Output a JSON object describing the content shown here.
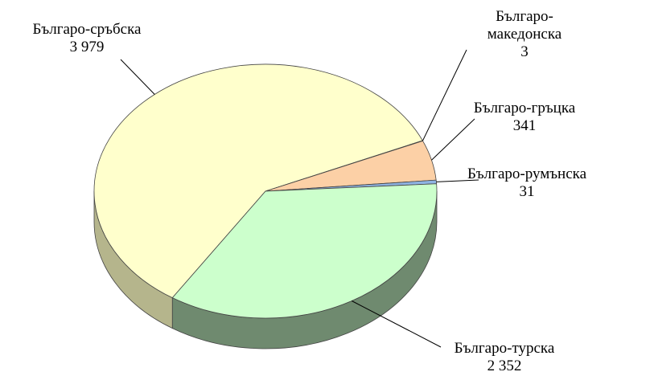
{
  "chart_data": {
    "type": "pie",
    "title": "",
    "slices": [
      {
        "label": "Българо-сръбска",
        "value_text": "3 979",
        "value": 3979,
        "color": "#ffffcc",
        "side": "#b5b58c"
      },
      {
        "label": "Българо-македонска",
        "label_lines": [
          "Българо-",
          "македонска"
        ],
        "value_text": "3",
        "value": 3,
        "color": "#ffccaa",
        "side": "#b8906e"
      },
      {
        "label": "Българо-гръцка",
        "value_text": "341",
        "value": 341,
        "color": "#fcd0a6",
        "side": "#b8906e"
      },
      {
        "label": "Българо-румънска",
        "value_text": "31",
        "value": 31,
        "color": "#8fb4e3",
        "side": "#5d7fa8"
      },
      {
        "label": "Българо-турска",
        "value_text": "2 352",
        "value": 2352,
        "color": "#ccffcc",
        "side": "#6f8a6f"
      }
    ]
  }
}
